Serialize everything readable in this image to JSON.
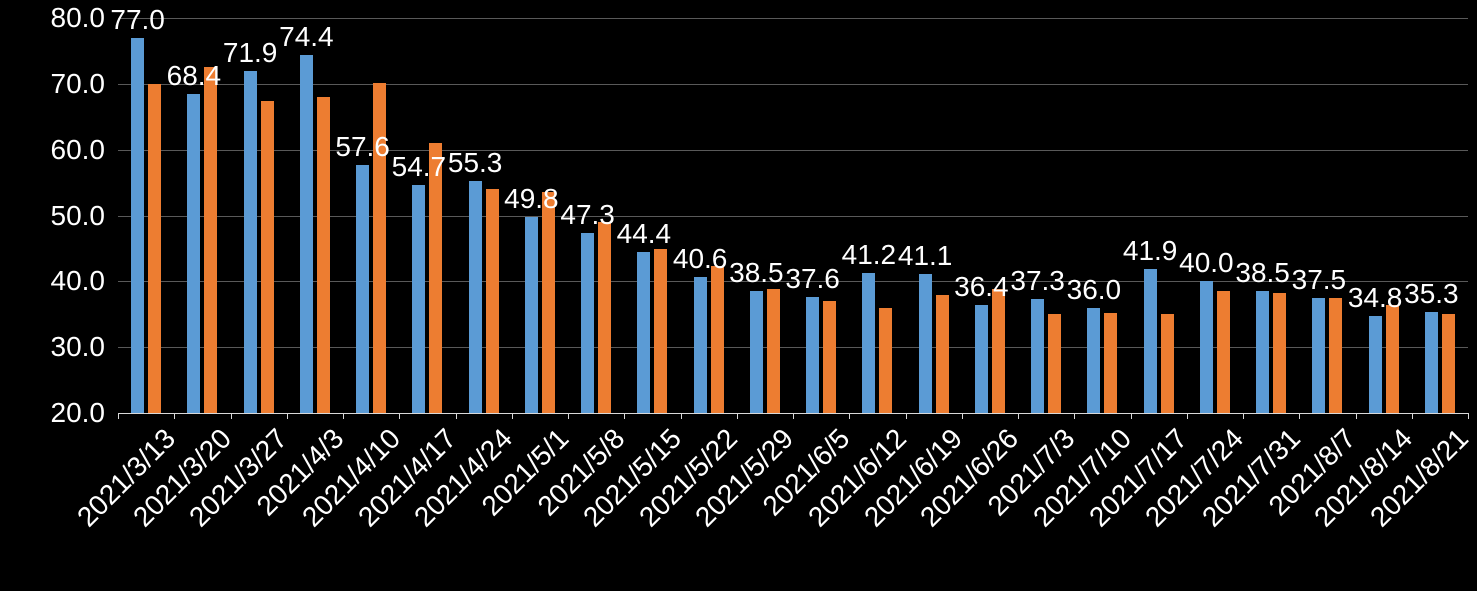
{
  "chart_data": {
    "type": "bar",
    "title": "",
    "categories": [
      "2021/3/13",
      "2021/3/20",
      "2021/3/27",
      "2021/4/3",
      "2021/4/10",
      "2021/4/17",
      "2021/4/24",
      "2021/5/1",
      "2021/5/8",
      "2021/5/15",
      "2021/5/22",
      "2021/5/29",
      "2021/6/5",
      "2021/6/12",
      "2021/6/19",
      "2021/6/26",
      "2021/7/3",
      "2021/7/10",
      "2021/7/17",
      "2021/7/24",
      "2021/7/31",
      "2021/8/7",
      "2021/8/14",
      "2021/8/21"
    ],
    "series": [
      {
        "name": "blue-series",
        "color": "#5B9BD5",
        "values": [
          77.0,
          68.4,
          71.9,
          74.4,
          57.6,
          54.7,
          55.3,
          49.8,
          47.3,
          44.4,
          40.6,
          38.5,
          37.6,
          41.2,
          41.1,
          36.4,
          37.3,
          36.0,
          41.9,
          40.0,
          38.5,
          37.5,
          34.8,
          35.3
        ]
      },
      {
        "name": "orange-series",
        "color": "#ED7D31",
        "values": [
          70.0,
          72.6,
          67.4,
          68.0,
          70.1,
          61.0,
          54.1,
          53.6,
          49.0,
          44.9,
          42.4,
          38.8,
          37.0,
          36.0,
          38.0,
          38.9,
          35.0,
          35.2,
          35.0,
          38.6,
          38.2,
          37.4,
          36.4,
          35.1
        ]
      }
    ],
    "data_labels": {
      "labeled_series": "blue-series",
      "color": "#FFFFFF",
      "values": [
        "77.0",
        "68.4",
        "71.9",
        "74.4",
        "57.6",
        "54.7",
        "55.3",
        "49.8",
        "47.3",
        "44.4",
        "40.6",
        "38.5",
        "37.6",
        "41.2",
        "41.1",
        "36.4",
        "37.3",
        "36.0",
        "41.9",
        "40.0",
        "38.5",
        "37.5",
        "34.8",
        "35.3"
      ]
    },
    "y_axis": {
      "min": 20,
      "max": 80,
      "step": 10,
      "tick_labels": [
        "20.0",
        "30.0",
        "40.0",
        "50.0",
        "60.0",
        "70.0",
        "80.0"
      ]
    },
    "x_axis": {
      "label_rotation_deg": -45
    },
    "grid": true,
    "legend_position": "none",
    "colors": {
      "background": "#000000",
      "text": "#FFFFFF",
      "gridline": "#595959",
      "axis_line": "#D9D9D9"
    }
  }
}
